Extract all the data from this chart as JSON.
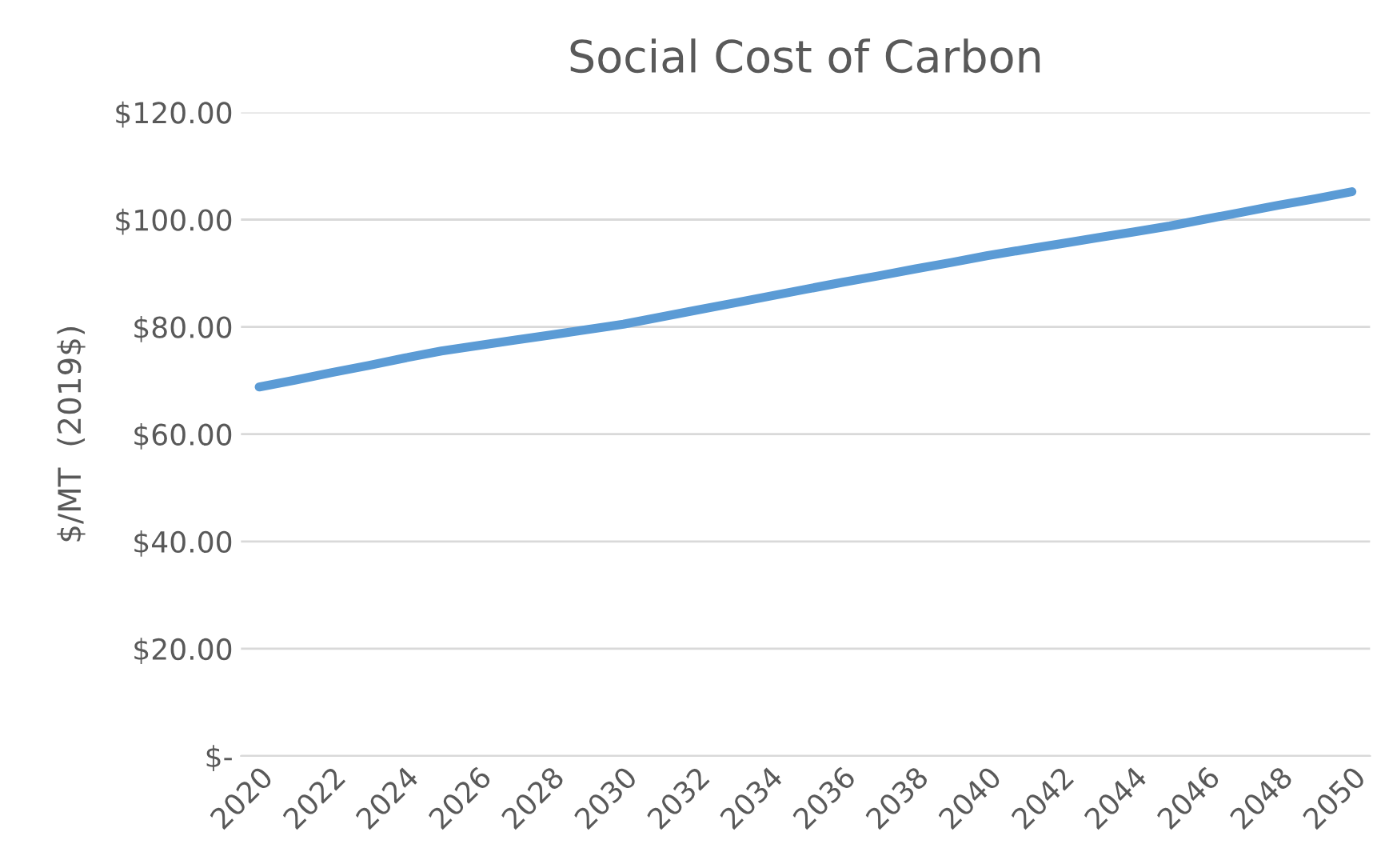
{
  "chart_data": {
    "type": "line",
    "title": "Social Cost of Carbon",
    "ylabel": "$/MT  (2019$)",
    "categories": [
      "2020",
      null,
      "2022",
      null,
      "2024",
      null,
      "2026",
      null,
      "2028",
      null,
      "2030",
      null,
      "2032",
      null,
      "2034",
      null,
      "2036",
      null,
      "2038",
      null,
      "2040",
      null,
      "2042",
      null,
      "2044",
      null,
      "2046",
      null,
      "2048",
      null,
      "2050"
    ],
    "series": [
      {
        "color": "#5b9bd5",
        "values": [
          68.8,
          70.1,
          71.5,
          72.8,
          74.2,
          75.5,
          76.5,
          77.5,
          78.5,
          79.5,
          80.5,
          81.8,
          83.1,
          84.4,
          85.7,
          87.0,
          88.3,
          89.5,
          90.8,
          92.0,
          93.3,
          94.4,
          95.5,
          96.6,
          97.7,
          98.8,
          100.1,
          101.4,
          102.7,
          103.9,
          105.2
        ]
      }
    ],
    "ylim": [
      0,
      120
    ],
    "yticks": [
      {
        "value": 0,
        "label": "$-"
      },
      {
        "value": 20,
        "label": "$20.00"
      },
      {
        "value": 40,
        "label": "$40.00"
      },
      {
        "value": 60,
        "label": "$60.00"
      },
      {
        "value": 80,
        "label": "$80.00"
      },
      {
        "value": 100,
        "label": "$100.00"
      },
      {
        "value": 120,
        "label": "$120.00"
      }
    ],
    "grid": "y",
    "marker": "none",
    "line_style": "solid"
  }
}
